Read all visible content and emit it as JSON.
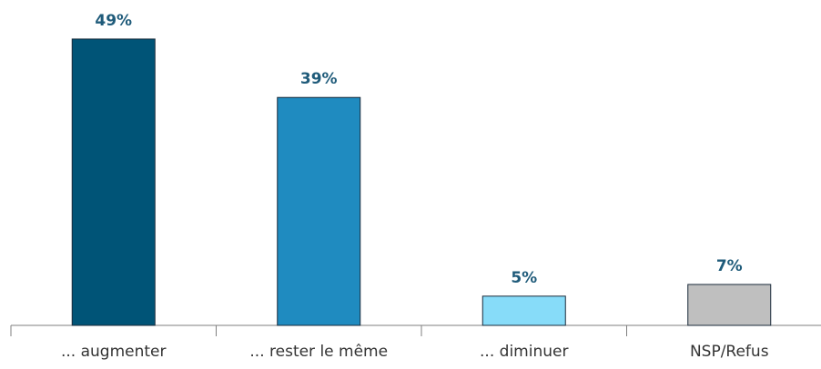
{
  "chart_data": {
    "type": "bar",
    "categories": [
      "... augmenter",
      "... rester le même",
      "... diminuer",
      "NSP/Refus"
    ],
    "values": [
      49,
      39,
      5,
      7
    ],
    "value_labels": [
      "49%",
      "39%",
      "5%",
      "7%"
    ],
    "colors": [
      "#005477",
      "#1f8bc0",
      "#87dcf9",
      "#bfbfbf"
    ]
  }
}
